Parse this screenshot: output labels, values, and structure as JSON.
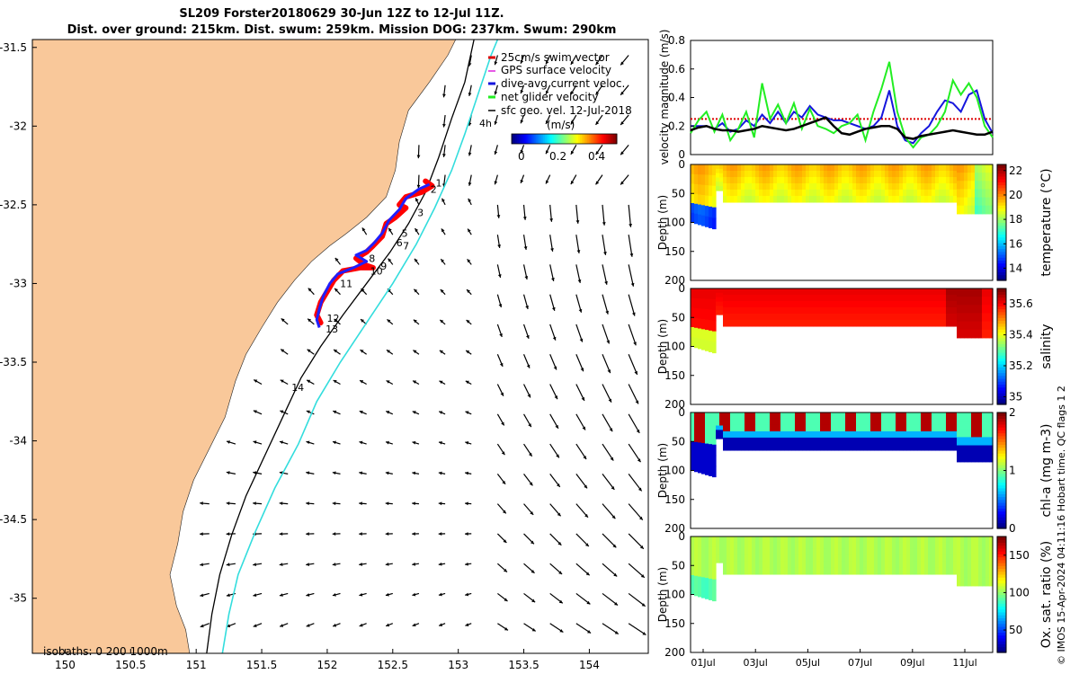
{
  "title_line1": "SL209 Forster20180629 30-Jun 12Z to 12-Jul 11Z.",
  "title_line2": "Dist. over ground: 215km. Dist. swum: 259km. Mission DOG: 237km. Swum: 290km",
  "colors": {
    "land": "#F9C89A",
    "track_red": "#ff0000",
    "track_blue": "#1f1fff",
    "isobath_200": "#000000",
    "isobath_1000": "#33dddd",
    "speed_black": "#000000",
    "speed_green": "#22ee22",
    "speed_blue": "#1515dd",
    "speed_red": "#dd0000"
  },
  "chart_data": [
    {
      "type": "scatter",
      "name": "map",
      "xlim": [
        149.75,
        154.45
      ],
      "ylim": [
        -35.35,
        -31.45
      ],
      "xticks": [
        150,
        150.5,
        151,
        151.5,
        152,
        152.5,
        153,
        153.5,
        154
      ],
      "xtick_labels": [
        "150",
        "150.5",
        "151",
        "151.5",
        "152",
        "152.5",
        "153",
        "153.5",
        "154"
      ],
      "yticks": [
        -31.5,
        -32,
        -32.5,
        -33,
        -33.5,
        -34,
        -34.5,
        -35
      ],
      "ytick_labels": [
        "-31.5",
        "-32",
        "-32.5",
        "-33",
        "-33.5",
        "-34",
        "-34.5",
        "-35"
      ],
      "legend": [
        "25cm/s swim vector",
        "GPS surface velocity",
        "dive-avg current veloc.",
        "net glider velocity",
        "sfc geo. vel. 12-Jul-2018"
      ],
      "legend_position": "top-right",
      "colorbar": {
        "title": "(m/s)",
        "ticks": [
          "0",
          "0.2",
          "0.4"
        ],
        "range": [
          0,
          0.5
        ]
      },
      "isobath_note": "isobaths: 0   200  1000m",
      "isobath_label": "4h",
      "coast": [
        [
          150.95,
          -35.35
        ],
        [
          150.92,
          -35.2
        ],
        [
          150.85,
          -35.05
        ],
        [
          150.8,
          -34.85
        ],
        [
          150.86,
          -34.65
        ],
        [
          150.9,
          -34.45
        ],
        [
          150.98,
          -34.25
        ],
        [
          151.1,
          -34.05
        ],
        [
          151.22,
          -33.85
        ],
        [
          151.3,
          -33.62
        ],
        [
          151.38,
          -33.45
        ],
        [
          151.5,
          -33.28
        ],
        [
          151.62,
          -33.12
        ],
        [
          151.75,
          -32.98
        ],
        [
          151.88,
          -32.86
        ],
        [
          152.02,
          -32.76
        ],
        [
          152.15,
          -32.68
        ],
        [
          152.3,
          -32.58
        ],
        [
          152.45,
          -32.45
        ],
        [
          152.52,
          -32.28
        ],
        [
          152.55,
          -32.1
        ],
        [
          152.62,
          -31.9
        ],
        [
          152.78,
          -31.72
        ],
        [
          152.92,
          -31.55
        ],
        [
          152.98,
          -31.45
        ]
      ],
      "isobath_200": [
        [
          151.08,
          -35.35
        ],
        [
          151.12,
          -35.1
        ],
        [
          151.18,
          -34.85
        ],
        [
          151.27,
          -34.6
        ],
        [
          151.38,
          -34.35
        ],
        [
          151.52,
          -34.1
        ],
        [
          151.66,
          -33.85
        ],
        [
          151.8,
          -33.6
        ],
        [
          151.95,
          -33.4
        ],
        [
          152.12,
          -33.2
        ],
        [
          152.3,
          -33.0
        ],
        [
          152.48,
          -32.8
        ],
        [
          152.62,
          -32.62
        ],
        [
          152.75,
          -32.42
        ],
        [
          152.85,
          -32.2
        ],
        [
          152.95,
          -31.95
        ],
        [
          153.05,
          -31.72
        ],
        [
          153.12,
          -31.45
        ]
      ],
      "isobath_1000": [
        [
          151.2,
          -35.35
        ],
        [
          151.25,
          -35.1
        ],
        [
          151.32,
          -34.85
        ],
        [
          151.45,
          -34.58
        ],
        [
          151.6,
          -34.3
        ],
        [
          151.78,
          -34.02
        ],
        [
          151.92,
          -33.75
        ],
        [
          152.1,
          -33.5
        ],
        [
          152.3,
          -33.25
        ],
        [
          152.5,
          -33.0
        ],
        [
          152.68,
          -32.75
        ],
        [
          152.82,
          -32.52
        ],
        [
          152.95,
          -32.28
        ],
        [
          153.05,
          -32.05
        ],
        [
          153.15,
          -31.8
        ],
        [
          153.25,
          -31.55
        ],
        [
          153.3,
          -31.45
        ]
      ],
      "track_red": [
        [
          152.75,
          -32.35
        ],
        [
          152.8,
          -32.38
        ],
        [
          152.72,
          -32.42
        ],
        [
          152.6,
          -32.45
        ],
        [
          152.55,
          -32.5
        ],
        [
          152.6,
          -32.52
        ],
        [
          152.52,
          -32.58
        ],
        [
          152.45,
          -32.62
        ],
        [
          152.42,
          -32.7
        ],
        [
          152.35,
          -32.76
        ],
        [
          152.3,
          -32.8
        ],
        [
          152.22,
          -32.84
        ],
        [
          152.28,
          -32.88
        ],
        [
          152.35,
          -32.9
        ],
        [
          152.25,
          -32.9
        ],
        [
          152.12,
          -32.92
        ],
        [
          152.05,
          -32.98
        ],
        [
          152.0,
          -33.05
        ],
        [
          151.95,
          -33.12
        ],
        [
          151.92,
          -33.2
        ],
        [
          151.95,
          -33.25
        ]
      ],
      "track_blue": [
        [
          152.78,
          -32.37
        ],
        [
          152.7,
          -32.4
        ],
        [
          152.6,
          -32.46
        ],
        [
          152.55,
          -32.53
        ],
        [
          152.47,
          -32.6
        ],
        [
          152.42,
          -32.68
        ],
        [
          152.36,
          -32.74
        ],
        [
          152.3,
          -32.79
        ],
        [
          152.22,
          -32.82
        ],
        [
          152.3,
          -32.86
        ],
        [
          152.2,
          -32.9
        ],
        [
          152.08,
          -32.94
        ],
        [
          152.02,
          -33.0
        ],
        [
          151.97,
          -33.08
        ],
        [
          151.94,
          -33.16
        ],
        [
          151.92,
          -33.23
        ],
        [
          151.94,
          -33.28
        ]
      ],
      "waypoints": [
        {
          "label": "1",
          "lon": 152.8,
          "lat": -32.36
        },
        {
          "label": "2",
          "lon": 152.76,
          "lat": -32.4
        },
        {
          "label": "3",
          "lon": 152.66,
          "lat": -32.55
        },
        {
          "label": "5",
          "lon": 152.54,
          "lat": -32.68
        },
        {
          "label": "7",
          "lon": 152.55,
          "lat": -32.76
        },
        {
          "label": "6",
          "lon": 152.5,
          "lat": -32.74
        },
        {
          "label": "8",
          "lon": 152.29,
          "lat": -32.84
        },
        {
          "label": "9",
          "lon": 152.38,
          "lat": -32.89
        },
        {
          "label": "10",
          "lon": 152.3,
          "lat": -32.92
        },
        {
          "label": "11",
          "lon": 152.07,
          "lat": -33.0
        },
        {
          "label": "12",
          "lon": 151.97,
          "lat": -33.22
        },
        {
          "label": "13",
          "lon": 151.96,
          "lat": -33.29
        },
        {
          "label": "14",
          "lon": 151.7,
          "lat": -33.66
        }
      ]
    },
    {
      "type": "line",
      "name": "velocity",
      "ylabel": "velocity magnitude (m/s)",
      "ylim": [
        0,
        0.8
      ],
      "yticks": [
        "0",
        "0.2",
        "0.4",
        "0.6",
        "0.8"
      ],
      "x_days_per_panel": 12,
      "series": [
        {
          "color": "#000000",
          "values": [
            0.17,
            0.19,
            0.2,
            0.18,
            0.17,
            0.17,
            0.16,
            0.17,
            0.18,
            0.2,
            0.19,
            0.18,
            0.17,
            0.18,
            0.2,
            0.22,
            0.24,
            0.26,
            0.2,
            0.15,
            0.14,
            0.16,
            0.18,
            0.19,
            0.2,
            0.2,
            0.18,
            0.12,
            0.11,
            0.13,
            0.14,
            0.15,
            0.16,
            0.17,
            0.16,
            0.15,
            0.14,
            0.14,
            0.16
          ]
        },
        {
          "color": "#22ee22",
          "values": [
            0.15,
            0.24,
            0.3,
            0.16,
            0.28,
            0.1,
            0.18,
            0.3,
            0.12,
            0.5,
            0.25,
            0.35,
            0.22,
            0.36,
            0.18,
            0.32,
            0.2,
            0.18,
            0.15,
            0.2,
            0.22,
            0.28,
            0.1,
            0.3,
            0.46,
            0.65,
            0.3,
            0.12,
            0.05,
            0.12,
            0.14,
            0.2,
            0.3,
            0.52,
            0.42,
            0.5,
            0.4,
            0.2,
            0.12
          ]
        },
        {
          "color": "#1515dd",
          "values": [
            0.2,
            0.2,
            0.2,
            0.18,
            0.22,
            0.16,
            0.18,
            0.24,
            0.2,
            0.28,
            0.22,
            0.3,
            0.22,
            0.3,
            0.26,
            0.34,
            0.28,
            0.26,
            0.24,
            0.24,
            0.22,
            0.2,
            0.18,
            0.2,
            0.26,
            0.45,
            0.2,
            0.1,
            0.08,
            0.15,
            0.2,
            0.3,
            0.38,
            0.36,
            0.3,
            0.42,
            0.45,
            0.25,
            0.15
          ]
        },
        {
          "color": "#dd0000",
          "values": [
            0.25,
            0.25,
            0.25,
            0.25,
            0.25,
            0.25,
            0.25,
            0.25,
            0.25,
            0.25,
            0.25,
            0.25,
            0.25,
            0.25,
            0.25,
            0.25,
            0.25,
            0.25,
            0.25,
            0.25,
            0.25,
            0.25,
            0.25,
            0.25,
            0.25,
            0.25,
            0.25,
            0.25,
            0.25,
            0.25,
            0.25,
            0.25,
            0.25,
            0.25,
            0.25,
            0.25,
            0.25,
            0.25,
            0.25
          ]
        }
      ]
    },
    {
      "type": "heatmap",
      "name": "temperature",
      "ylabel": "Depth (m)",
      "colorbar_label": "temperature (°C)",
      "ylim": [
        0,
        200
      ],
      "yticks": [
        "0",
        "50",
        "100",
        "150",
        "200"
      ],
      "cbar_ticks": [
        "14",
        "16",
        "18",
        "20",
        "22"
      ],
      "clim": [
        13,
        22.5
      ],
      "top_value": 19.6,
      "bottom_value": 18.5
    },
    {
      "type": "heatmap",
      "name": "salinity",
      "ylabel": "Depth (m)",
      "colorbar_label": "salinity",
      "ylim": [
        0,
        200
      ],
      "yticks": [
        "0",
        "50",
        "100",
        "150",
        "200"
      ],
      "cbar_ticks": [
        "35",
        "35.2",
        "35.4",
        "35.6"
      ],
      "clim": [
        34.95,
        35.7
      ],
      "top_value": 35.62,
      "bottom_value": 35.58
    },
    {
      "type": "heatmap",
      "name": "chlorophyll",
      "ylabel": "Depth (m)",
      "colorbar_label": "chl-a (mg m-3)",
      "ylim": [
        0,
        200
      ],
      "yticks": [
        "0",
        "50",
        "100",
        "150",
        "200"
      ],
      "cbar_ticks": [
        "0",
        "1",
        "2"
      ],
      "clim": [
        0,
        2
      ],
      "top_value": 1.0,
      "bottom_value": 0.3
    },
    {
      "type": "heatmap",
      "name": "oxygen",
      "ylabel": "Depth (m)",
      "colorbar_label": "Ox. sat. ratio (%)",
      "ylim": [
        0,
        200
      ],
      "yticks": [
        "0",
        "50",
        "100",
        "150",
        "200"
      ],
      "cbar_ticks": [
        "50",
        "100",
        "150"
      ],
      "clim": [
        20,
        175
      ],
      "top_value": 108,
      "bottom_value": 100
    }
  ],
  "time_axis": {
    "labels": [
      "01Jul",
      "03Jul",
      "05Jul",
      "07Jul",
      "09Jul",
      "11Jul"
    ]
  },
  "qc_note": "© IMOS 15-Apr-2024 04:11:16 Hobart time. QC flags 1  2"
}
